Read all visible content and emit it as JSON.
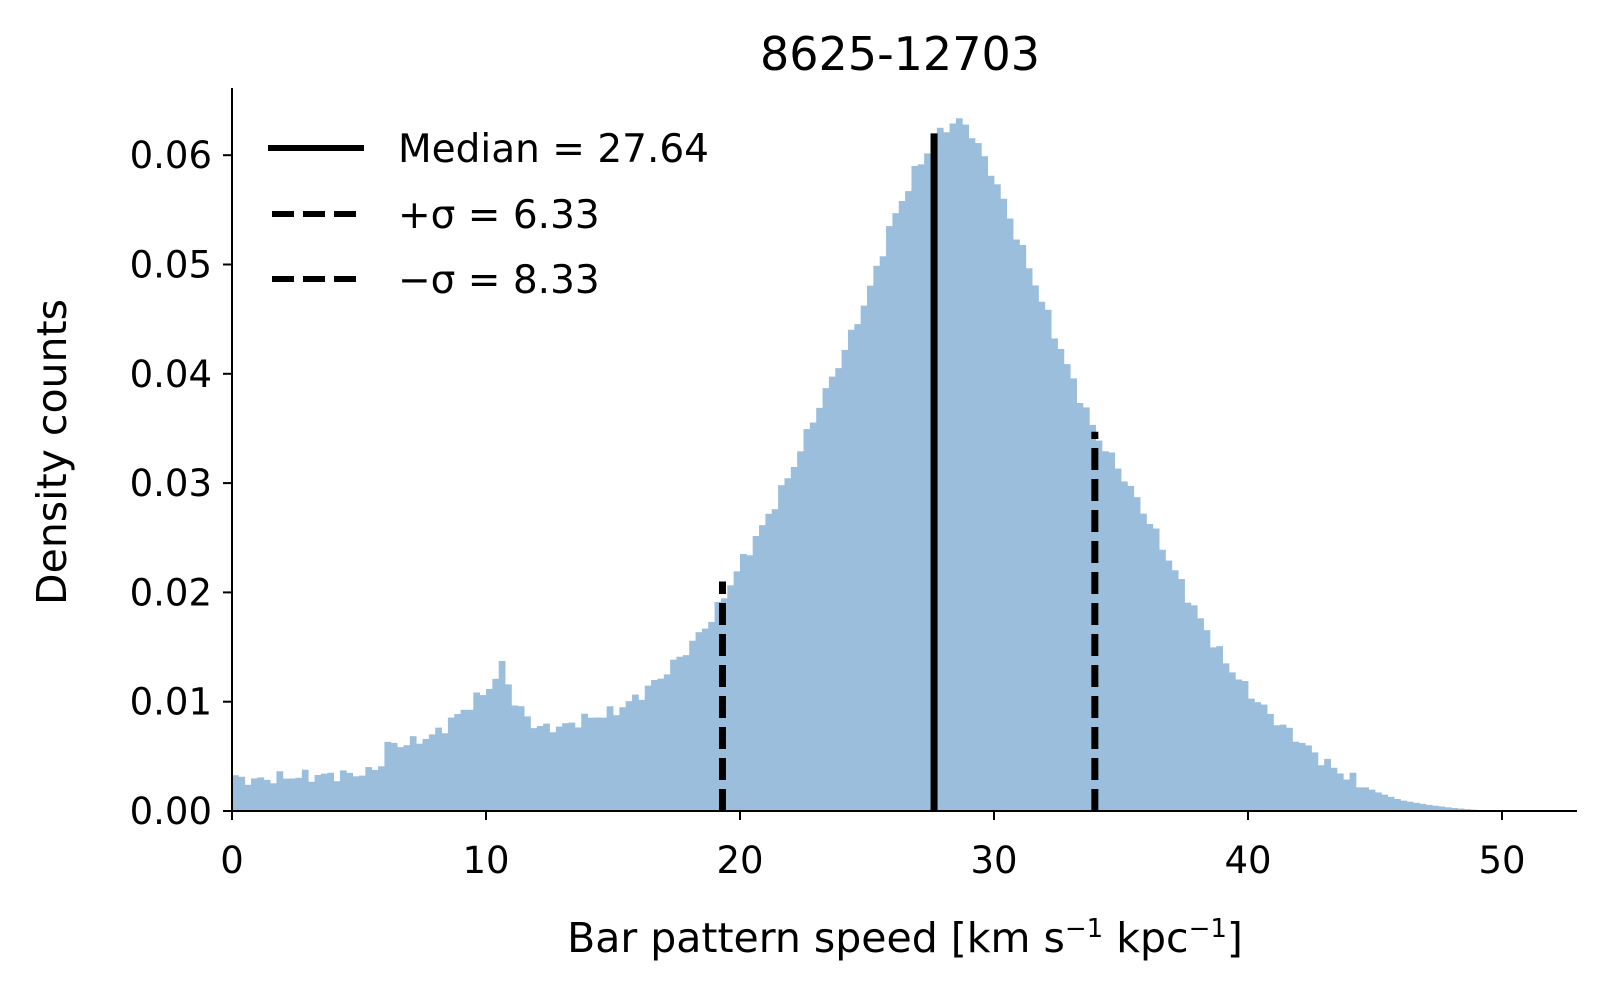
{
  "chart_data": {
    "type": "histogram",
    "title": "8625-12703",
    "xlabel": "Bar pattern speed [km s",
    "xlabel_unit_parts": [
      "−1",
      " kpc",
      "−1",
      "]"
    ],
    "ylabel": "Density counts",
    "xlim": [
      0,
      53
    ],
    "ylim": [
      0,
      0.066
    ],
    "x_ticks": [
      "0",
      "10",
      "20",
      "30",
      "40",
      "50"
    ],
    "y_ticks": [
      "0.00",
      "0.01",
      "0.02",
      "0.03",
      "0.04",
      "0.05",
      "0.06"
    ],
    "bin_width": 0.25,
    "bar_color": "#9bbedd",
    "bins_anchor": [
      [
        0,
        0.003
      ],
      [
        1,
        0.0028
      ],
      [
        2,
        0.0031
      ],
      [
        3,
        0.0032
      ],
      [
        4,
        0.0033
      ],
      [
        5,
        0.0034
      ],
      [
        5.5,
        0.0036
      ],
      [
        5.9,
        0.0045
      ],
      [
        6.0,
        0.006
      ],
      [
        7,
        0.0062
      ],
      [
        8,
        0.007
      ],
      [
        9,
        0.009
      ],
      [
        10,
        0.011
      ],
      [
        10.5,
        0.0125
      ],
      [
        10.75,
        0.014
      ],
      [
        11.0,
        0.01
      ],
      [
        11.5,
        0.009
      ],
      [
        12,
        0.0076
      ],
      [
        13,
        0.0077
      ],
      [
        14,
        0.0085
      ],
      [
        15,
        0.009
      ],
      [
        16,
        0.0105
      ],
      [
        17,
        0.0125
      ],
      [
        18,
        0.015
      ],
      [
        19,
        0.018
      ],
      [
        20,
        0.0225
      ],
      [
        21,
        0.0265
      ],
      [
        22,
        0.031
      ],
      [
        23,
        0.0365
      ],
      [
        24,
        0.0415
      ],
      [
        25,
        0.047
      ],
      [
        26,
        0.054
      ],
      [
        27,
        0.059
      ],
      [
        28,
        0.0625
      ],
      [
        28.75,
        0.0632
      ],
      [
        29,
        0.0625
      ],
      [
        30,
        0.058
      ],
      [
        31,
        0.052
      ],
      [
        32,
        0.046
      ],
      [
        33,
        0.04
      ],
      [
        34,
        0.0345
      ],
      [
        35,
        0.031
      ],
      [
        36,
        0.027
      ],
      [
        37,
        0.0225
      ],
      [
        38,
        0.018
      ],
      [
        39,
        0.014
      ],
      [
        40,
        0.011
      ],
      [
        41,
        0.0085
      ],
      [
        42,
        0.0065
      ],
      [
        43,
        0.0045
      ],
      [
        44,
        0.003
      ],
      [
        45,
        0.0018
      ],
      [
        46,
        0.001
      ],
      [
        47,
        0.0006
      ],
      [
        48,
        0.0003
      ],
      [
        49,
        0.0001
      ],
      [
        50,
        0.0
      ]
    ],
    "lines": [
      {
        "x": 27.64,
        "y_top": 0.062,
        "style": "solid",
        "label": "Median = 27.64"
      },
      {
        "x": 19.31,
        "y_top": 0.021,
        "style": "dashed",
        "label": "−σ = 8.33"
      },
      {
        "x": 33.97,
        "y_top": 0.0347,
        "style": "dashed",
        "label": "+σ = 6.33"
      }
    ],
    "legend": {
      "position": "upper-left",
      "entries": [
        {
          "label": "Median = 27.64",
          "style": "solid"
        },
        {
          "label": "+σ = 6.33",
          "style": "dashed"
        },
        {
          "label": "−σ = 8.33",
          "style": "dashed"
        }
      ]
    },
    "grid": false
  }
}
